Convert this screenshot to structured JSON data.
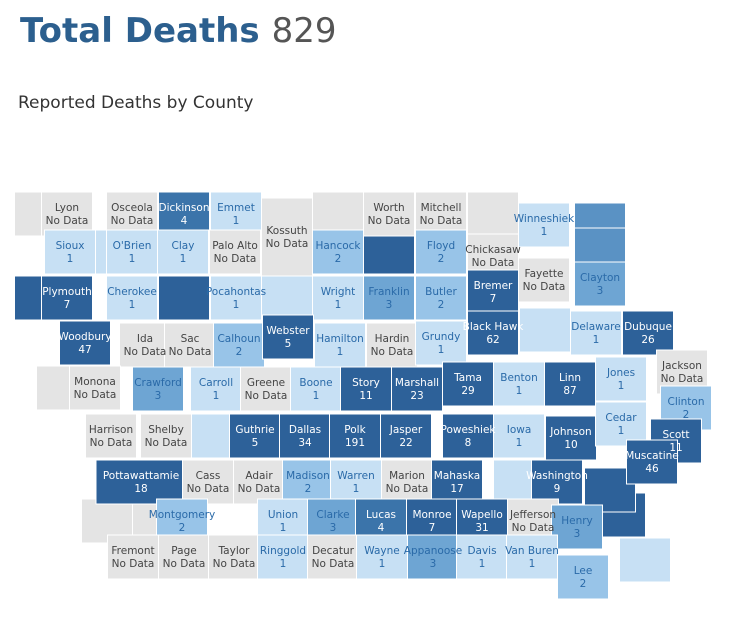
{
  "header": {
    "title": "Total Deaths",
    "total": "829",
    "subtitle": "Reported Deaths by County"
  },
  "counties": [
    {
      "name": "Lyon",
      "value": "No Data",
      "color": "#e4e4e4"
    },
    {
      "name": "Osceola",
      "value": "No Data",
      "color": "#e4e4e4"
    },
    {
      "name": "Dickinson",
      "value": 4,
      "color": "#3b74aa"
    },
    {
      "name": "Emmet",
      "value": 1,
      "color": "#c7e0f4"
    },
    {
      "name": "Kossuth",
      "value": "No Data",
      "color": "#e4e4e4"
    },
    {
      "name": "Worth",
      "value": "No Data",
      "color": "#e4e4e4"
    },
    {
      "name": "Mitchell",
      "value": "No Data",
      "color": "#e4e4e4"
    },
    {
      "name": "Winneshiek",
      "value": 1,
      "color": "#c7e0f4"
    },
    {
      "name": "Sioux",
      "value": 1,
      "color": "#c7e0f4"
    },
    {
      "name": "O'Brien",
      "value": 1,
      "color": "#c7e0f4"
    },
    {
      "name": "Clay",
      "value": 1,
      "color": "#c7e0f4"
    },
    {
      "name": "Palo Alto",
      "value": "No Data",
      "color": "#e4e4e4"
    },
    {
      "name": "Hancock",
      "value": 2,
      "color": "#98c4e8"
    },
    {
      "name": "Floyd",
      "value": 2,
      "color": "#98c4e8"
    },
    {
      "name": "Chickasaw",
      "value": "No Data",
      "color": "#e4e4e4"
    },
    {
      "name": "Clayton",
      "value": 3,
      "color": "#6ea5d3"
    },
    {
      "name": "Plymouth",
      "value": 7,
      "color": "#2d6199"
    },
    {
      "name": "Cherokee",
      "value": 1,
      "color": "#c7e0f4"
    },
    {
      "name": "Pocahontas",
      "value": 1,
      "color": "#c7e0f4"
    },
    {
      "name": "Wright",
      "value": 1,
      "color": "#c7e0f4"
    },
    {
      "name": "Franklin",
      "value": 3,
      "color": "#6ea5d3"
    },
    {
      "name": "Butler",
      "value": 2,
      "color": "#98c4e8"
    },
    {
      "name": "Bremer",
      "value": 7,
      "color": "#2d6199"
    },
    {
      "name": "Fayette",
      "value": "No Data",
      "color": "#e4e4e4"
    },
    {
      "name": "Woodbury",
      "value": 47,
      "color": "#2d6199"
    },
    {
      "name": "Ida",
      "value": "No Data",
      "color": "#e4e4e4"
    },
    {
      "name": "Sac",
      "value": "No Data",
      "color": "#e4e4e4"
    },
    {
      "name": "Calhoun",
      "value": 2,
      "color": "#98c4e8"
    },
    {
      "name": "Webster",
      "value": 5,
      "color": "#2d6199"
    },
    {
      "name": "Hamilton",
      "value": 1,
      "color": "#c7e0f4"
    },
    {
      "name": "Hardin",
      "value": "No Data",
      "color": "#e4e4e4"
    },
    {
      "name": "Grundy",
      "value": 1,
      "color": "#c7e0f4"
    },
    {
      "name": "Black Hawk",
      "value": 62,
      "color": "#2d6199"
    },
    {
      "name": "Delaware",
      "value": 1,
      "color": "#c7e0f4"
    },
    {
      "name": "Dubuque",
      "value": 26,
      "color": "#2d6199"
    },
    {
      "name": "Monona",
      "value": "No Data",
      "color": "#e4e4e4"
    },
    {
      "name": "Crawford",
      "value": 3,
      "color": "#6ea5d3"
    },
    {
      "name": "Carroll",
      "value": 1,
      "color": "#c7e0f4"
    },
    {
      "name": "Greene",
      "value": "No Data",
      "color": "#e4e4e4"
    },
    {
      "name": "Boone",
      "value": 1,
      "color": "#c7e0f4"
    },
    {
      "name": "Story",
      "value": 11,
      "color": "#2d6199"
    },
    {
      "name": "Marshall",
      "value": 23,
      "color": "#2d6199"
    },
    {
      "name": "Tama",
      "value": 29,
      "color": "#2d6199"
    },
    {
      "name": "Benton",
      "value": 1,
      "color": "#c7e0f4"
    },
    {
      "name": "Linn",
      "value": 87,
      "color": "#2d6199"
    },
    {
      "name": "Jones",
      "value": 1,
      "color": "#c7e0f4"
    },
    {
      "name": "Jackson",
      "value": "No Data",
      "color": "#e4e4e4"
    },
    {
      "name": "Harrison",
      "value": "No Data",
      "color": "#e4e4e4"
    },
    {
      "name": "Shelby",
      "value": "No Data",
      "color": "#e4e4e4"
    },
    {
      "name": "Guthrie",
      "value": 5,
      "color": "#2d6199"
    },
    {
      "name": "Dallas",
      "value": 34,
      "color": "#2d6199"
    },
    {
      "name": "Polk",
      "value": 191,
      "color": "#2d6199"
    },
    {
      "name": "Jasper",
      "value": 22,
      "color": "#2d6199"
    },
    {
      "name": "Poweshiek",
      "value": 8,
      "color": "#2d6199"
    },
    {
      "name": "Iowa",
      "value": 1,
      "color": "#c7e0f4"
    },
    {
      "name": "Johnson",
      "value": 10,
      "color": "#2d6199"
    },
    {
      "name": "Cedar",
      "value": 1,
      "color": "#c7e0f4"
    },
    {
      "name": "Clinton",
      "value": 2,
      "color": "#98c4e8"
    },
    {
      "name": "Scott",
      "value": 11,
      "color": "#2d6199"
    },
    {
      "name": "Pottawattamie",
      "value": 18,
      "color": "#2d6199"
    },
    {
      "name": "Cass",
      "value": "No Data",
      "color": "#e4e4e4"
    },
    {
      "name": "Adair",
      "value": "No Data",
      "color": "#e4e4e4"
    },
    {
      "name": "Madison",
      "value": 2,
      "color": "#98c4e8"
    },
    {
      "name": "Warren",
      "value": 1,
      "color": "#c7e0f4"
    },
    {
      "name": "Marion",
      "value": "No Data",
      "color": "#e4e4e4"
    },
    {
      "name": "Mahaska",
      "value": 17,
      "color": "#2d6199"
    },
    {
      "name": "Washington",
      "value": 9,
      "color": "#2d6199"
    },
    {
      "name": "Muscatine",
      "value": 46,
      "color": "#2d6199"
    },
    {
      "name": "Montgomery",
      "value": 2,
      "color": "#98c4e8"
    },
    {
      "name": "Union",
      "value": 1,
      "color": "#c7e0f4"
    },
    {
      "name": "Clarke",
      "value": 3,
      "color": "#6ea5d3"
    },
    {
      "name": "Lucas",
      "value": 4,
      "color": "#3b74aa"
    },
    {
      "name": "Monroe",
      "value": 7,
      "color": "#2d6199"
    },
    {
      "name": "Wapello",
      "value": 31,
      "color": "#2d6199"
    },
    {
      "name": "Jefferson",
      "value": "No Data",
      "color": "#e4e4e4"
    },
    {
      "name": "Henry",
      "value": 3,
      "color": "#6ea5d3"
    },
    {
      "name": "Fremont",
      "value": "No Data",
      "color": "#e4e4e4"
    },
    {
      "name": "Page",
      "value": "No Data",
      "color": "#e4e4e4"
    },
    {
      "name": "Taylor",
      "value": "No Data",
      "color": "#e4e4e4"
    },
    {
      "name": "Ringgold",
      "value": 1,
      "color": "#c7e0f4"
    },
    {
      "name": "Decatur",
      "value": "No Data",
      "color": "#e4e4e4"
    },
    {
      "name": "Wayne",
      "value": 1,
      "color": "#c7e0f4"
    },
    {
      "name": "Appanoose",
      "value": 3,
      "color": "#6ea5d3"
    },
    {
      "name": "Davis",
      "value": 1,
      "color": "#c7e0f4"
    },
    {
      "name": "Van Buren",
      "value": 1,
      "color": "#c7e0f4"
    },
    {
      "name": "Lee",
      "value": 2,
      "color": "#98c4e8"
    }
  ]
}
